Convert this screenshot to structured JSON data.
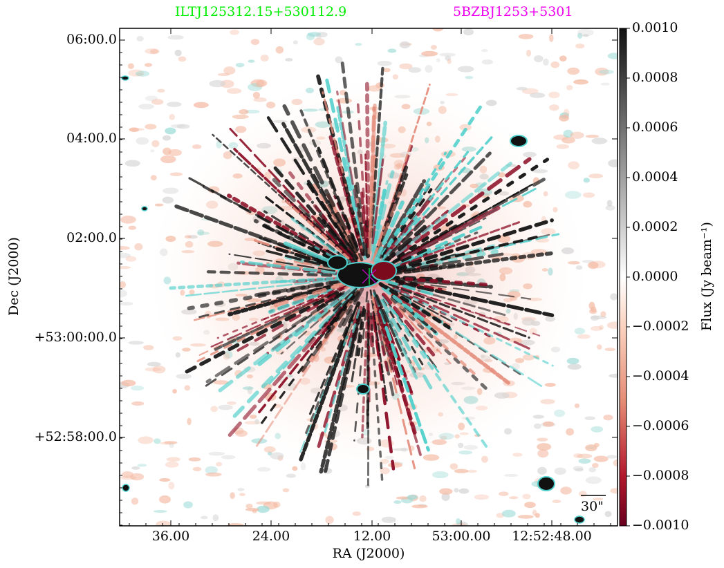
{
  "titles": {
    "left": "ILTJ125312.15+530112.9",
    "left_color": "#00ee00",
    "right": "5BZBJ1253+5301",
    "right_color": "#ee00ee"
  },
  "axes": {
    "xlabel": "RA (J2000)",
    "ylabel": "Dec (J2000)",
    "xticks": [
      "36.00",
      "24.00",
      "12.00",
      "53:00.00",
      "12:52:48.00"
    ],
    "yticks": [
      "06:00.0",
      "04:00.0",
      "02:00.0",
      "+53:00:00.0",
      "+52:58:00.0"
    ]
  },
  "colorbar": {
    "label": "Flux (Jy beam⁻¹)",
    "ticks": [
      "0.0010",
      "0.0008",
      "0.0006",
      "0.0004",
      "0.0002",
      "0.0000",
      "−0.0002",
      "−0.0004",
      "−0.0006",
      "−0.0008",
      "−0.0010"
    ],
    "colors": {
      "top": "#111111",
      "mid": "#ffffff",
      "bottom": "#67001f"
    }
  },
  "image": {
    "contour_color": "#4fd0cc",
    "negative_color": "#b2182b",
    "positive_color": "#111111",
    "marker_color": "#b000b0"
  },
  "scalebar": {
    "label": "30\""
  }
}
